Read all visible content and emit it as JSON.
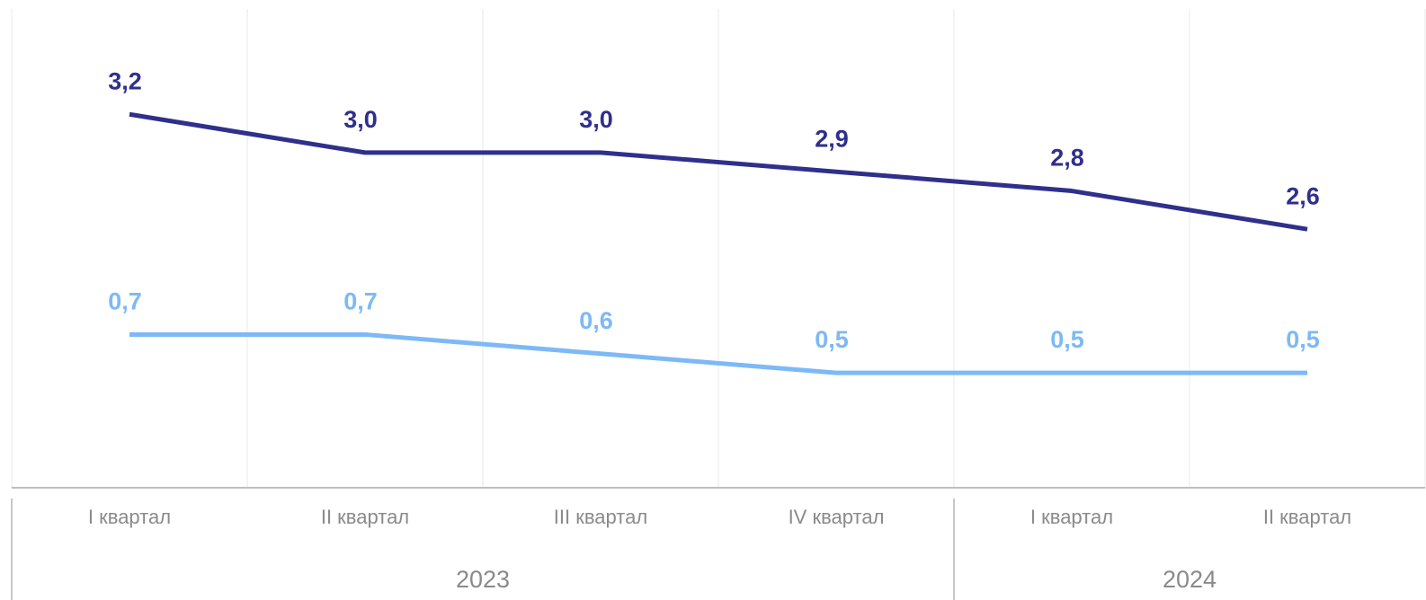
{
  "chart_data": {
    "type": "line",
    "categories": [
      "I квартал",
      "II квартал",
      "III квартал",
      "IV квартал",
      "I квартал",
      "II квартал"
    ],
    "groups": [
      {
        "label": "2023",
        "count": 4
      },
      {
        "label": "2024",
        "count": 2
      }
    ],
    "series": [
      {
        "color": "#2f2f8c",
        "values": [
          3.2,
          3.0,
          3.0,
          2.9,
          2.8,
          2.6
        ],
        "value_labels": [
          "3,2",
          "3,0",
          "3,0",
          "2,9",
          "2,8",
          "2,6"
        ]
      },
      {
        "color": "#7db9f6",
        "axis": "y2",
        "values": [
          0.7,
          0.7,
          0.6,
          0.5,
          0.5,
          0.5
        ],
        "value_labels": [
          "0,7",
          "0,7",
          "0,6",
          "0,5",
          "0,5",
          "0,5"
        ]
      }
    ],
    "ylim": [
      1.25,
      3.75
    ],
    "y2lim": [
      -0.1,
      2.4
    ],
    "grid": true
  }
}
